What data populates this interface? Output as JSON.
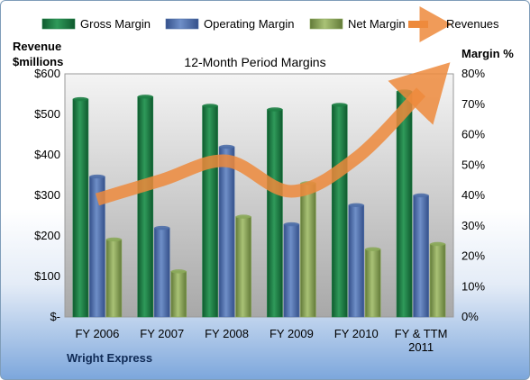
{
  "chart_data": {
    "type": "bar",
    "title": "12-Month Period Margins",
    "left_axis_label": [
      "Revenue",
      "$millions"
    ],
    "right_axis_label": "Margin %",
    "footer": "Wright Express",
    "categories": [
      [
        "FY 2006"
      ],
      [
        "FY 2007"
      ],
      [
        "FY 2008"
      ],
      [
        "FY 2009"
      ],
      [
        "FY 2010"
      ],
      [
        "FY & TTM",
        "2011"
      ]
    ],
    "ylim_left": [
      0,
      600
    ],
    "ylim_right": [
      0,
      80
    ],
    "left_ticks": [
      "$-",
      "$100",
      "$200",
      "$300",
      "$400",
      "$500",
      "$600"
    ],
    "right_ticks": [
      "0%",
      "10%",
      "20%",
      "30%",
      "40%",
      "50%",
      "60%",
      "70%",
      "80%"
    ],
    "legend_position": "top",
    "grid": false,
    "series": [
      {
        "name": "Gross Margin",
        "axis": "right",
        "color": "#1e7f45",
        "values": [
          71.7,
          72.5,
          69.5,
          68.3,
          69.8,
          74.2
        ]
      },
      {
        "name": "Operating Margin",
        "axis": "right",
        "color": "#4f6fa8",
        "values": [
          46.2,
          29.3,
          56.0,
          30.5,
          36.8,
          40.0
        ]
      },
      {
        "name": "Net Margin",
        "axis": "right",
        "color": "#8ba85a",
        "values": [
          25.5,
          15.0,
          33.0,
          44.0,
          22.3,
          24.0
        ]
      },
      {
        "name": "Revenues",
        "axis": "left",
        "type": "line",
        "color": "#ed8a3c",
        "values": [
          290,
          338,
          385,
          310,
          392,
          555
        ]
      }
    ]
  }
}
